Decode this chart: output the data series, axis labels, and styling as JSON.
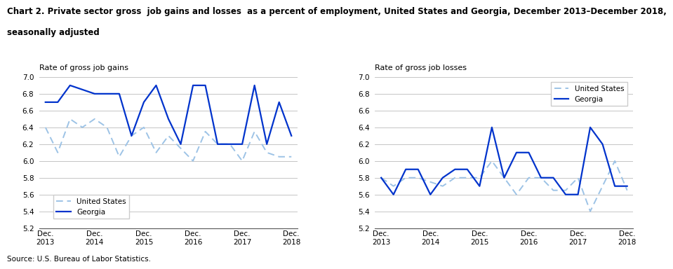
{
  "title_line1": "Chart 2. Private sector gross  job gains and losses  as a percent of employment, United States and Georgia, December 2013–December 2018,",
  "title_line2": "seasonally adjusted",
  "title_fontsize": 8.5,
  "left_ylabel": "Rate of gross job gains",
  "right_ylabel": "Rate of gross job losses",
  "x_labels": [
    "Dec.\n2013",
    "Dec.\n2014",
    "Dec.\n2015",
    "Dec.\n2016",
    "Dec.\n2017",
    "Dec.\n2018"
  ],
  "x_positions": [
    0,
    4,
    8,
    12,
    16,
    20
  ],
  "gains_us": [
    6.4,
    6.1,
    6.5,
    6.4,
    6.5,
    6.4,
    6.05,
    6.3,
    6.4,
    6.1,
    6.3,
    6.15,
    6.0,
    6.35,
    6.2,
    6.2,
    6.0,
    6.35,
    6.1,
    6.05,
    6.05
  ],
  "gains_georgia": [
    6.7,
    6.7,
    6.9,
    6.85,
    6.8,
    6.8,
    6.8,
    6.3,
    6.7,
    6.9,
    6.5,
    6.2,
    6.9,
    6.9,
    6.2,
    6.2,
    6.2,
    6.9,
    6.2,
    6.7,
    6.3
  ],
  "losses_us": [
    5.8,
    5.7,
    5.8,
    5.8,
    5.75,
    5.7,
    5.8,
    5.8,
    5.8,
    6.0,
    5.8,
    5.6,
    5.8,
    5.8,
    5.65,
    5.65,
    5.8,
    5.4,
    5.7,
    6.0,
    5.65
  ],
  "losses_georgia": [
    5.8,
    5.6,
    5.9,
    5.9,
    5.6,
    5.8,
    5.9,
    5.9,
    5.7,
    6.4,
    5.8,
    6.1,
    6.1,
    5.8,
    5.8,
    5.6,
    5.6,
    6.4,
    6.2,
    5.7,
    5.7
  ],
  "ylim": [
    5.2,
    7.0
  ],
  "yticks": [
    5.2,
    5.4,
    5.6,
    5.8,
    6.0,
    6.2,
    6.4,
    6.6,
    6.8,
    7.0
  ],
  "us_color": "#9DC3E6",
  "georgia_color": "#0033CC",
  "source": "Source: U.S. Bureau of Labor Statistics."
}
